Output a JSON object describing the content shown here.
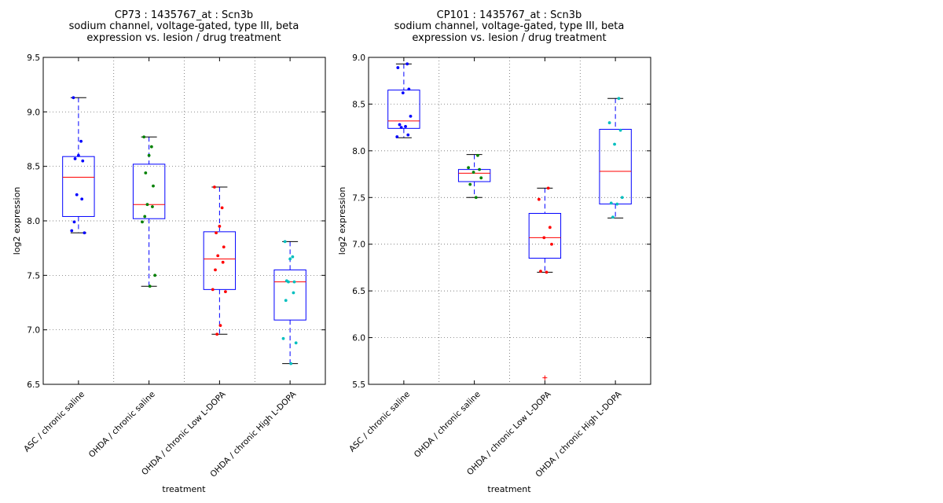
{
  "colors": {
    "blue": "#0000ff",
    "green": "#008000",
    "red": "#ff0000",
    "cyan": "#00bfbf",
    "median": "#ff0000",
    "box": "#0000ff"
  },
  "chart_data": [
    {
      "type": "box",
      "title": [
        "CP73 : 1435767_at : Scn3b",
        "sodium channel, voltage-gated, type III, beta",
        "expression vs. lesion / drug treatment"
      ],
      "xlabel": "treatment",
      "ylabel": "log2 expression",
      "ylim": [
        6.5,
        9.5
      ],
      "yticks": [
        6.5,
        7.0,
        7.5,
        8.0,
        8.5,
        9.0,
        9.5
      ],
      "ytick_labels": [
        "6.5",
        "7.0",
        "7.5",
        "8.0",
        "8.5",
        "9.0",
        "9.5"
      ],
      "grid": true,
      "categories": [
        "ASC / chronic saline",
        "OHDA / chronic saline",
        "OHDA / chronic Low L-DOPA",
        "OHDA / chronic High L-DOPA"
      ],
      "groups": [
        {
          "color": "blue",
          "q1": 8.04,
          "median": 8.4,
          "q3": 8.59,
          "whisker_low": 7.89,
          "whisker_high": 9.13,
          "points": [
            9.13,
            8.73,
            8.6,
            8.57,
            8.55,
            8.24,
            8.2,
            7.99,
            7.91,
            7.89
          ]
        },
        {
          "color": "green",
          "q1": 8.02,
          "median": 8.15,
          "q3": 8.52,
          "whisker_low": 7.4,
          "whisker_high": 8.77,
          "points": [
            8.77,
            8.68,
            8.6,
            8.44,
            8.32,
            8.15,
            8.13,
            8.04,
            7.99,
            7.5,
            7.4
          ]
        },
        {
          "color": "red",
          "q1": 7.37,
          "median": 7.65,
          "q3": 7.9,
          "whisker_low": 6.96,
          "whisker_high": 8.31,
          "points": [
            8.31,
            8.12,
            7.95,
            7.89,
            7.76,
            7.68,
            7.62,
            7.55,
            7.37,
            7.35,
            7.04,
            6.96
          ]
        },
        {
          "color": "cyan",
          "q1": 7.09,
          "median": 7.44,
          "q3": 7.55,
          "whisker_low": 6.69,
          "whisker_high": 7.81,
          "points": [
            7.81,
            7.67,
            7.65,
            7.45,
            7.44,
            7.44,
            7.34,
            7.27,
            6.92,
            6.88,
            6.69
          ]
        }
      ]
    },
    {
      "type": "box",
      "title": [
        "CP101 : 1435767_at : Scn3b",
        "sodium channel, voltage-gated, type III, beta",
        "expression vs. lesion / drug treatment"
      ],
      "xlabel": "treatment",
      "ylabel": "log2 expression",
      "ylim": [
        5.5,
        9.0
      ],
      "yticks": [
        5.5,
        6.0,
        6.5,
        7.0,
        7.5,
        8.0,
        8.5,
        9.0
      ],
      "ytick_labels": [
        "5.5",
        "6.0",
        "6.5",
        "7.0",
        "7.5",
        "8.0",
        "8.5",
        "9.0"
      ],
      "grid": true,
      "categories": [
        "ASC / chronic saline",
        "OHDA / chronic saline",
        "OHDA / chronic Low L-DOPA",
        "OHDA / chronic High L-DOPA"
      ],
      "groups": [
        {
          "color": "blue",
          "q1": 8.24,
          "median": 8.32,
          "q3": 8.65,
          "whisker_low": 8.14,
          "whisker_high": 8.93,
          "points": [
            8.93,
            8.89,
            8.66,
            8.62,
            8.37,
            8.28,
            8.26,
            8.25,
            8.17,
            8.15
          ]
        },
        {
          "color": "green",
          "q1": 7.67,
          "median": 7.76,
          "q3": 7.8,
          "whisker_low": 7.5,
          "whisker_high": 7.96,
          "points": [
            7.95,
            7.82,
            7.8,
            7.77,
            7.71,
            7.64,
            7.5
          ]
        },
        {
          "color": "red",
          "q1": 6.85,
          "median": 7.07,
          "q3": 7.33,
          "whisker_low": 6.7,
          "whisker_high": 7.6,
          "points": [
            7.6,
            7.48,
            7.18,
            7.07,
            7.0,
            6.71,
            6.7
          ],
          "outliers": [
            5.57
          ]
        },
        {
          "color": "cyan",
          "q1": 7.43,
          "median": 7.78,
          "q3": 8.23,
          "whisker_low": 7.28,
          "whisker_high": 8.56,
          "points": [
            8.56,
            8.3,
            8.22,
            8.07,
            7.5,
            7.44,
            7.43,
            7.29
          ]
        }
      ]
    }
  ]
}
